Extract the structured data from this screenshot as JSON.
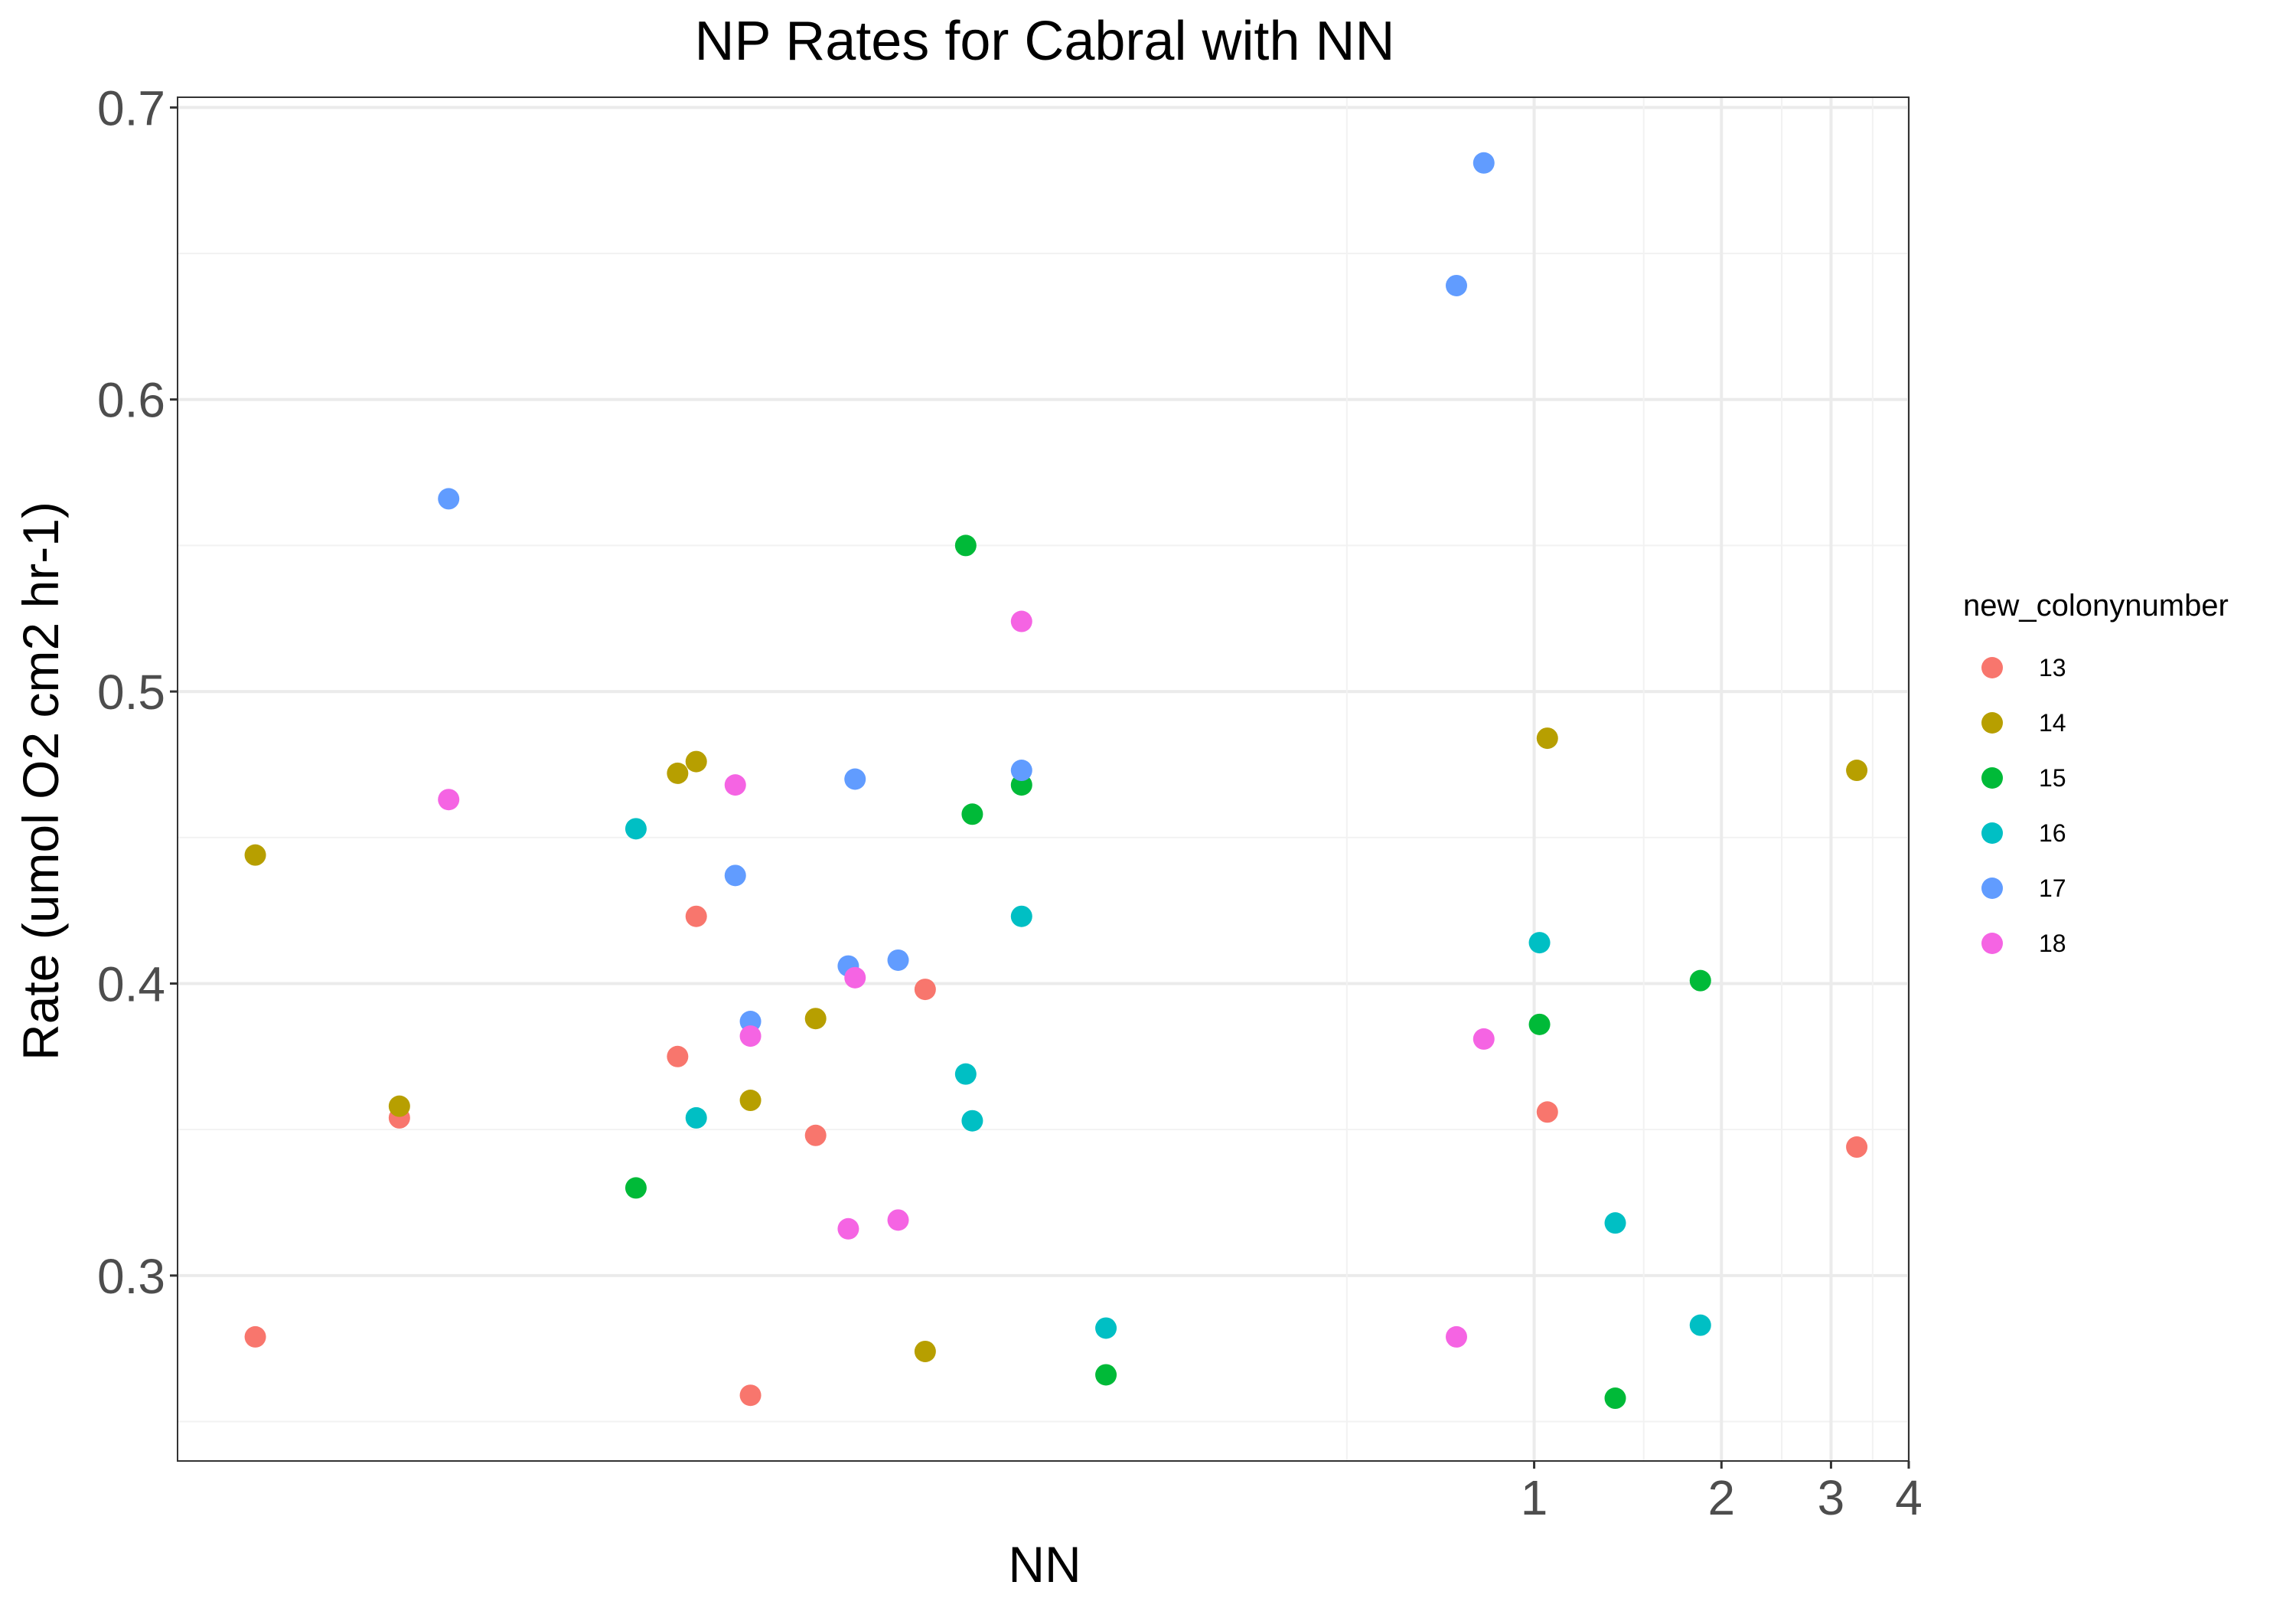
{
  "chart_data": {
    "type": "scatter",
    "title": "NP Rates for Cabral with NN",
    "xlabel": "NN",
    "ylabel": "Rate (umol O2 cm2 hr-1)",
    "x_scale": "log10",
    "xlim": [
      0.0066,
      4.0
    ],
    "ylim": [
      0.2365,
      0.7035
    ],
    "x_ticks": [
      1,
      2,
      3,
      4
    ],
    "x_tick_labels": [
      "1",
      "2",
      "3",
      "4"
    ],
    "y_ticks": [
      0.3,
      0.4,
      0.5,
      0.6,
      0.7
    ],
    "y_tick_labels": [
      "0.3",
      "0.4",
      "0.5",
      "0.6",
      "0.7"
    ],
    "grid": true,
    "legend": {
      "title": "new_colonynumber",
      "position": "right",
      "entries": [
        "13",
        "14",
        "15",
        "16",
        "17",
        "18"
      ]
    },
    "colors": {
      "13": "#F8766D",
      "14": "#B79F00",
      "15": "#00BA38",
      "16": "#00BFC4",
      "17": "#619CFF",
      "18": "#F564E3"
    },
    "series": [
      {
        "name": "13",
        "x": [
          0.0088,
          0.015,
          0.045,
          0.042,
          0.055,
          0.07,
          0.105,
          1.05,
          3.3
        ],
        "y": [
          0.279,
          0.354,
          0.423,
          0.375,
          0.259,
          0.348,
          0.398,
          0.356,
          0.344
        ]
      },
      {
        "name": "14",
        "x": [
          0.0088,
          0.015,
          0.042,
          0.045,
          0.055,
          0.07,
          0.105,
          1.05,
          3.3
        ],
        "y": [
          0.444,
          0.358,
          0.472,
          0.476,
          0.36,
          0.388,
          0.274,
          0.484,
          0.473
        ]
      },
      {
        "name": "15",
        "x": [
          0.036,
          0.122,
          0.125,
          0.15,
          0.205,
          1.02,
          1.35,
          1.85
        ],
        "y": [
          0.33,
          0.55,
          0.458,
          0.468,
          0.266,
          0.386,
          0.258,
          0.401
        ]
      },
      {
        "name": "16",
        "x": [
          0.036,
          0.045,
          0.122,
          0.125,
          0.15,
          0.205,
          1.02,
          1.35,
          1.85
        ],
        "y": [
          0.453,
          0.354,
          0.369,
          0.353,
          0.423,
          0.282,
          0.414,
          0.318,
          0.283
        ]
      },
      {
        "name": "17",
        "x": [
          0.018,
          0.052,
          0.055,
          0.081,
          0.079,
          0.095,
          0.15,
          0.75,
          0.83
        ],
        "y": [
          0.566,
          0.437,
          0.387,
          0.47,
          0.406,
          0.408,
          0.473,
          0.639,
          0.681
        ]
      },
      {
        "name": "18",
        "x": [
          0.018,
          0.052,
          0.055,
          0.079,
          0.081,
          0.095,
          0.15,
          0.75,
          0.83
        ],
        "y": [
          0.463,
          0.468,
          0.382,
          0.316,
          0.402,
          0.319,
          0.524,
          0.279,
          0.381
        ]
      }
    ]
  }
}
